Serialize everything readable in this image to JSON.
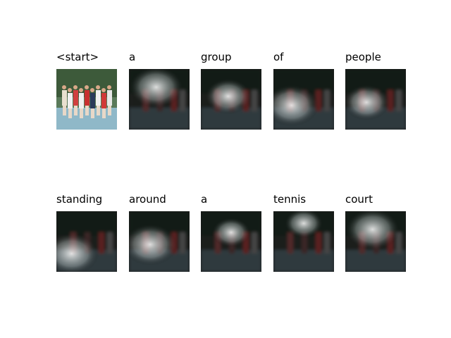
{
  "rows": [
    {
      "frames": [
        {
          "word": "<start>",
          "kind": "original"
        },
        {
          "word": "a",
          "kind": "attention"
        },
        {
          "word": "group",
          "kind": "attention"
        },
        {
          "word": "of",
          "kind": "attention"
        },
        {
          "word": "people",
          "kind": "attention"
        }
      ]
    },
    {
      "frames": [
        {
          "word": "standing",
          "kind": "attention"
        },
        {
          "word": "around",
          "kind": "attention"
        },
        {
          "word": "a",
          "kind": "attention"
        },
        {
          "word": "tennis",
          "kind": "attention"
        },
        {
          "word": "court",
          "kind": "attention"
        }
      ]
    }
  ]
}
